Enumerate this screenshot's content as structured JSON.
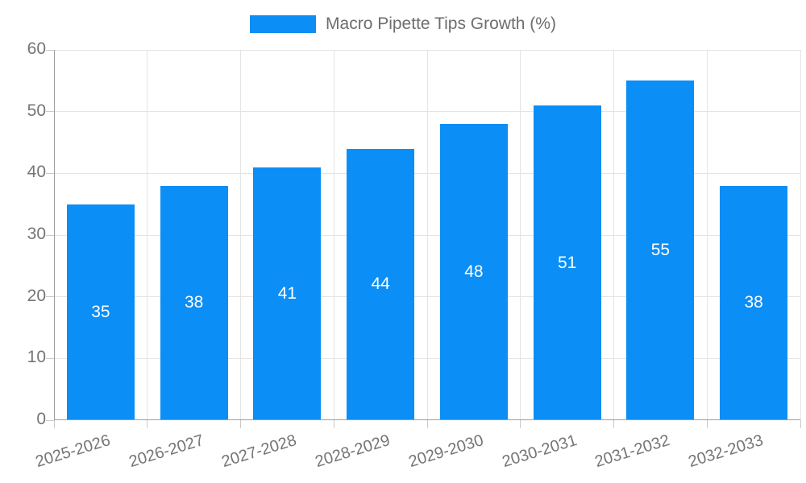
{
  "legend": {
    "label": "Macro Pipette Tips Growth (%)"
  },
  "chart_data": {
    "type": "bar",
    "title": "Macro Pipette Tips Growth (%)",
    "categories": [
      "2025-2026",
      "2026-2027",
      "2027-2028",
      "2028-2029",
      "2029-2030",
      "2030-2031",
      "2031-2032",
      "2032-2033"
    ],
    "values": [
      35,
      38,
      41,
      44,
      48,
      51,
      55,
      38
    ],
    "xlabel": "",
    "ylabel": "",
    "ylim": [
      0,
      60
    ],
    "yticks": [
      0,
      10,
      20,
      30,
      40,
      50,
      60
    ],
    "grid": true,
    "legend_position": "top",
    "bar_color": "#0b8ef5",
    "bar_label_color": "#ffffff",
    "grid_color": "#e4e4e4",
    "axis_color": "#9e9e9e",
    "tick_color": "#c9c9c9",
    "tick_label_color": "#757575",
    "title_color": "#6e6e6e"
  }
}
